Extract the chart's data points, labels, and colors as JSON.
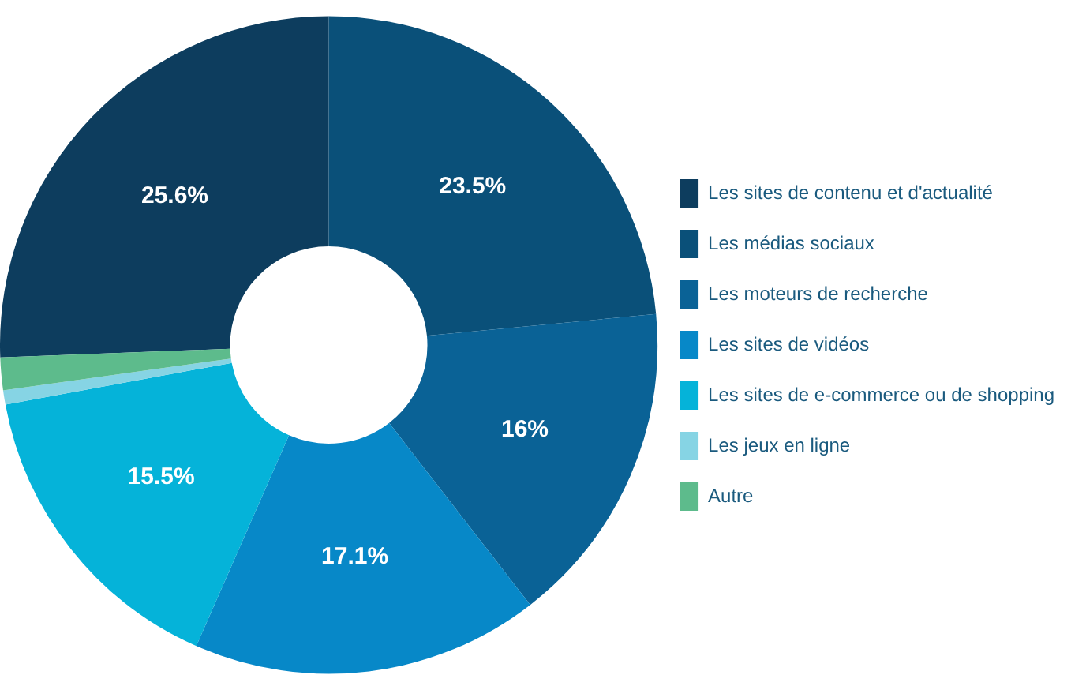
{
  "chart_data": {
    "type": "donut",
    "categories": [
      "Les sites de contenu et d'actualité",
      "Les médias sociaux",
      "Les moteurs de recherche",
      "Les sites de vidéos",
      "Les sites de e-commerce ou de shopping",
      "Les jeux en ligne",
      "Autre"
    ],
    "values": [
      25.6,
      23.5,
      16,
      17.1,
      15.5,
      0.7,
      1.6
    ],
    "colors": [
      "#0d3d5e",
      "#0a5079",
      "#0a6296",
      "#0788c8",
      "#05b3d9",
      "#86d4e4",
      "#5dbb8c"
    ],
    "value_labels": [
      "25.6%",
      "23.5%",
      "16%",
      "17.1%",
      "15.5%",
      null,
      null
    ],
    "legend": "right"
  }
}
